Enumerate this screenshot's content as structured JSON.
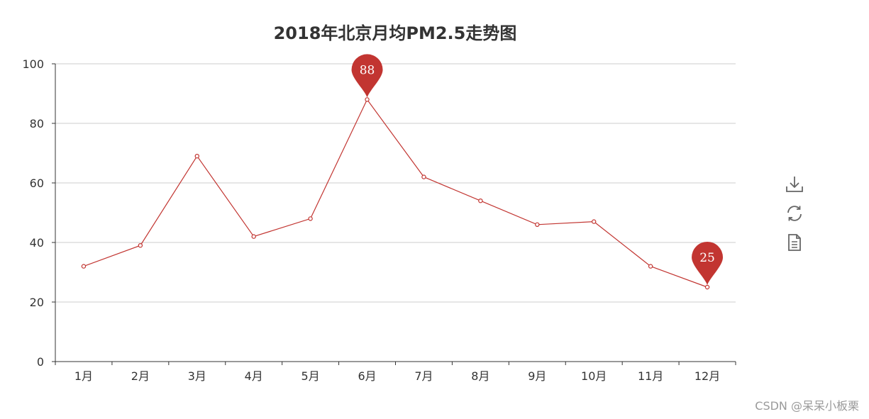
{
  "chart_data": {
    "type": "line",
    "title": "2018年北京月均PM2.5走势图",
    "categories": [
      "1月",
      "2月",
      "3月",
      "4月",
      "5月",
      "6月",
      "7月",
      "8月",
      "9月",
      "10月",
      "11月",
      "12月"
    ],
    "series": [
      {
        "values": [
          32,
          39,
          69,
          42,
          48,
          88,
          62,
          54,
          46,
          47,
          32,
          25
        ]
      }
    ],
    "ylim": [
      0,
      100
    ],
    "yticks": [
      0,
      20,
      40,
      60,
      80,
      100
    ],
    "grid": true,
    "mark_points": [
      {
        "type": "max",
        "category": "6月",
        "value": 88,
        "label": "88"
      },
      {
        "type": "min",
        "category": "12月",
        "value": 25,
        "label": "25"
      }
    ],
    "colors": {
      "line": "#c23531",
      "axis": "#333333",
      "grid": "#cccccc"
    }
  },
  "toolbox": {
    "items": [
      {
        "name": "save-as-image",
        "icon": "download-icon"
      },
      {
        "name": "restore",
        "icon": "refresh-icon"
      },
      {
        "name": "data-view",
        "icon": "document-icon"
      }
    ]
  },
  "watermark": "CSDN @呆呆小板栗"
}
